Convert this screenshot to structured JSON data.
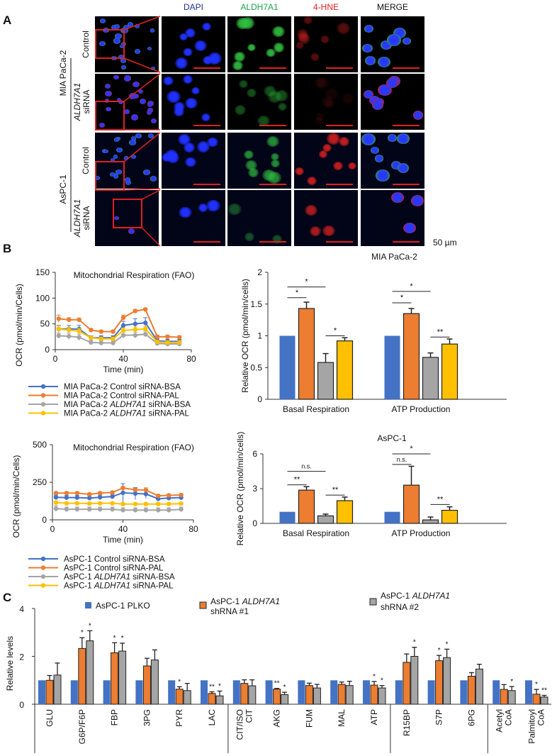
{
  "panel_a": {
    "label": "A",
    "columns": [
      "DAPI",
      "ALDH7A1",
      "4-HNE",
      "MERGE"
    ],
    "column_colors": [
      "#1f2f8a",
      "#1aa34a",
      "#e02020",
      "#111111"
    ],
    "cell_lines": [
      "MIA PaCa-2",
      "AsPC-1"
    ],
    "rows": [
      {
        "line1": "Control",
        "line2": ""
      },
      {
        "line1": "ALDH7A1",
        "line2": "siRNA"
      },
      {
        "line1": "Control",
        "line2": ""
      },
      {
        "line1": "ALDH7A1",
        "line2": "siRNA"
      }
    ],
    "scale_bar": "50 µm"
  },
  "panel_b": {
    "label": "B"
  },
  "panel_c": {
    "label": "C"
  },
  "chart_data": [
    {
      "id": "mia-ocr-time",
      "type": "line",
      "title": "Mitochondrial Respiration (FAO)",
      "xlabel": "Time (min)",
      "ylabel": "OCR (pmol/min/Cells)",
      "xlim": [
        0,
        80
      ],
      "xticks": [
        0,
        40,
        80
      ],
      "ylim": [
        0,
        150
      ],
      "yticks": [
        0,
        50,
        100,
        150
      ],
      "x": [
        2,
        8,
        14,
        21,
        27,
        34,
        40,
        47,
        53,
        60,
        66,
        73
      ],
      "series": [
        {
          "name": "MIA PaCa-2 Control siRNA-BSA",
          "color": "#4472C4",
          "values": [
            40,
            40,
            40,
            23,
            23,
            23,
            47,
            50,
            52,
            17,
            16,
            16
          ],
          "error": [
            7,
            7,
            7,
            4,
            4,
            4,
            8,
            10,
            10,
            4,
            4,
            4
          ]
        },
        {
          "name": "MIA PaCa-2 Control siRNA-PAL",
          "color": "#ED7D31",
          "values": [
            60,
            58,
            58,
            38,
            35,
            35,
            62,
            75,
            78,
            25,
            25,
            24
          ],
          "error": [
            7,
            4,
            3,
            3,
            2,
            3,
            5,
            3,
            3,
            3,
            3,
            3
          ]
        },
        {
          "name": "MIA PaCa-2 ALDH7A1 siRNA-BSA",
          "color": "#A5A5A5",
          "values": [
            27,
            26,
            24,
            14,
            13,
            13,
            28,
            28,
            30,
            12,
            11,
            11
          ],
          "error": [
            5,
            6,
            6,
            4,
            4,
            4,
            6,
            6,
            6,
            3,
            3,
            3
          ]
        },
        {
          "name": "MIA PaCa-2 ALDH7A1 siRNA-PAL",
          "color": "#FFC000",
          "values": [
            40,
            38,
            36,
            23,
            21,
            21,
            37,
            39,
            40,
            15,
            14,
            14
          ],
          "error": [
            6,
            5,
            5,
            3,
            3,
            3,
            5,
            5,
            5,
            3,
            3,
            3
          ]
        }
      ],
      "italic_term": "ALDH7A1"
    },
    {
      "id": "aspc-ocr-time",
      "type": "line",
      "title": "Mitochondrial Respiration (FAO)",
      "xlabel": "Time (min)",
      "ylabel": "OCR (pmol/min/Cells)",
      "xlim": [
        0,
        80
      ],
      "xticks": [
        0,
        40,
        80
      ],
      "ylim": [
        0,
        500
      ],
      "yticks": [
        0,
        250,
        500
      ],
      "x": [
        2,
        8,
        14,
        21,
        27,
        34,
        40,
        47,
        53,
        60,
        66,
        73
      ],
      "series": [
        {
          "name": "AsPC-1 Control siRNA-BSA",
          "color": "#4472C4",
          "values": [
            150,
            148,
            148,
            145,
            150,
            155,
            180,
            175,
            172,
            140,
            145,
            148
          ],
          "error": [
            15,
            15,
            15,
            15,
            15,
            15,
            60,
            40,
            30,
            15,
            15,
            15
          ]
        },
        {
          "name": "AsPC-1 Control siRNA-PAL",
          "color": "#ED7D31",
          "values": [
            178,
            178,
            178,
            170,
            178,
            182,
            212,
            200,
            198,
            160,
            163,
            165
          ],
          "error": [
            8,
            8,
            8,
            8,
            8,
            8,
            10,
            10,
            15,
            8,
            8,
            8
          ]
        },
        {
          "name": "AsPC-1 ALDH7A1 siRNA-BSA",
          "color": "#A5A5A5",
          "values": [
            75,
            70,
            70,
            70,
            70,
            70,
            65,
            65,
            65,
            65,
            65,
            70
          ],
          "error": [
            20,
            15,
            15,
            15,
            15,
            15,
            15,
            15,
            15,
            15,
            15,
            15
          ]
        },
        {
          "name": "AsPC-1 ALDH7A1 siRNA-PAL",
          "color": "#FFC000",
          "values": [
            115,
            110,
            110,
            108,
            110,
            110,
            105,
            105,
            105,
            105,
            105,
            108
          ],
          "error": [
            10,
            8,
            8,
            8,
            8,
            8,
            8,
            8,
            8,
            8,
            8,
            8
          ]
        }
      ],
      "italic_term": "ALDH7A1"
    },
    {
      "id": "mia-relative-ocr",
      "type": "bar",
      "title": "MIA PaCa-2",
      "ylabel": "Relative OCR (pmol/min/cells)",
      "ylim": [
        0,
        2
      ],
      "yticks": [
        0,
        0.5,
        1,
        1.5,
        2
      ],
      "categories": [
        "Basal Respiration",
        "ATP Production"
      ],
      "colors": [
        "#4472C4",
        "#ED7D31",
        "#A5A5A5",
        "#FFC000"
      ],
      "series": [
        {
          "values": [
            1,
            1
          ],
          "error": [
            0,
            0
          ]
        },
        {
          "values": [
            1.43,
            1.35
          ],
          "error": [
            0.1,
            0.08
          ]
        },
        {
          "values": [
            0.58,
            0.66
          ],
          "error": [
            0.14,
            0.07
          ]
        },
        {
          "values": [
            0.92,
            0.87
          ],
          "error": [
            0.05,
            0.08
          ]
        }
      ],
      "significance": [
        {
          "group": 0,
          "from": 0,
          "to": 1,
          "y": 1.6,
          "label": "*"
        },
        {
          "group": 0,
          "from": 0,
          "to": 2,
          "y": 1.77,
          "label": "*"
        },
        {
          "group": 0,
          "from": 2,
          "to": 3,
          "y": 1.0,
          "label": "*"
        },
        {
          "group": 1,
          "from": 0,
          "to": 1,
          "y": 1.52,
          "label": "*"
        },
        {
          "group": 1,
          "from": 0,
          "to": 2,
          "y": 1.7,
          "label": "*"
        },
        {
          "group": 1,
          "from": 2,
          "to": 3,
          "y": 0.98,
          "label": "**"
        }
      ]
    },
    {
      "id": "aspc-relative-ocr",
      "type": "bar",
      "title": "AsPC-1",
      "ylabel": "Relative OCR (pmol/min/cells)",
      "ylim": [
        0,
        6
      ],
      "yticks": [
        0,
        3,
        6
      ],
      "categories": [
        "Basal Respiration",
        "ATP Production"
      ],
      "colors": [
        "#4472C4",
        "#ED7D31",
        "#A5A5A5",
        "#FFC000"
      ],
      "series": [
        {
          "values": [
            1,
            1
          ],
          "error": [
            0,
            0
          ]
        },
        {
          "values": [
            2.87,
            3.3
          ],
          "error": [
            0.3,
            1.63
          ]
        },
        {
          "values": [
            0.65,
            0.3
          ],
          "error": [
            0.15,
            0.25
          ]
        },
        {
          "values": [
            1.96,
            1.13
          ],
          "error": [
            0.31,
            0.3
          ]
        }
      ],
      "significance": [
        {
          "group": 0,
          "from": 0,
          "to": 1,
          "y": 3.33,
          "label": "**"
        },
        {
          "group": 0,
          "from": 0,
          "to": 2,
          "y": 4.49,
          "label": "n.s."
        },
        {
          "group": 0,
          "from": 2,
          "to": 3,
          "y": 2.44,
          "label": "**"
        },
        {
          "group": 1,
          "from": 0,
          "to": 1,
          "y": 5.09,
          "label": "n.s."
        },
        {
          "group": 1,
          "from": 0,
          "to": 2,
          "y": 6.0,
          "label": "*"
        },
        {
          "group": 1,
          "from": 2,
          "to": 3,
          "y": 1.63,
          "label": "**"
        }
      ]
    },
    {
      "id": "metabolite-levels",
      "type": "bar",
      "ylabel": "Relative levels",
      "ylim": [
        0,
        4
      ],
      "yticks": [
        0,
        2,
        4
      ],
      "categories": [
        "GLU",
        "G6P/F6P",
        "FBP",
        "3PG",
        "PYR",
        "LAC",
        "CIT/ISO CIT",
        "AKG",
        "FUM",
        "MAL",
        "ATP",
        "R15BP",
        "S7P",
        "6PG",
        "Acetyl CoA",
        "Palmitoyl CoA"
      ],
      "category_lines": [
        [
          "GLU"
        ],
        [
          "G6P/F6P"
        ],
        [
          "FBP"
        ],
        [
          "3PG"
        ],
        [
          "PYR"
        ],
        [
          "LAC"
        ],
        [
          "CIT/ISO",
          "CIT"
        ],
        [
          "AKG"
        ],
        [
          "FUM"
        ],
        [
          "MAL"
        ],
        [
          "ATP"
        ],
        [
          "R15BP"
        ],
        [
          "S7P"
        ],
        [
          "6PG"
        ],
        [
          "Acetyl",
          "CoA"
        ],
        [
          "Palmitoyl",
          "CoA"
        ]
      ],
      "group_breaks_after": [
        "LAC",
        "ATP",
        "6PG"
      ],
      "colors": [
        "#4472C4",
        "#ED7D31",
        "#A5A5A5"
      ],
      "legend": [
        {
          "line1": "AsPC-1 PLKO",
          "line2": ""
        },
        {
          "line1": "AsPC-1 ALDH7A1",
          "line2": "shRNA #1"
        },
        {
          "line1": "AsPC-1 ALDH7A1",
          "line2": "shRNA #2"
        }
      ],
      "series": [
        {
          "name": "AsPC-1 PLKO",
          "values": [
            1,
            1,
            1,
            1,
            1,
            1,
            1,
            1,
            1,
            1,
            1,
            1,
            1,
            1,
            1,
            1
          ],
          "error": [
            0,
            0,
            0,
            0,
            0,
            0,
            0,
            0,
            0,
            0,
            0,
            0,
            0,
            0,
            0,
            0
          ],
          "stars": [
            "",
            "",
            "",
            "",
            "",
            "",
            "",
            "",
            "",
            "",
            "",
            "",
            "",
            "",
            "",
            ""
          ]
        },
        {
          "name": "AsPC-1 ALDH7A1 shRNA #1",
          "values": [
            1.0,
            2.33,
            2.15,
            1.6,
            0.63,
            0.45,
            0.87,
            0.63,
            0.78,
            0.83,
            0.8,
            1.75,
            1.82,
            1.17,
            0.62,
            0.42
          ],
          "error": [
            0.2,
            0.45,
            0.42,
            0.32,
            0.1,
            0.07,
            0.15,
            0.03,
            0.1,
            0.1,
            0.15,
            0.35,
            0.22,
            0.15,
            0.2,
            0.2
          ],
          "stars": [
            "",
            "*",
            "*",
            "",
            "*",
            "**",
            "",
            "**",
            "",
            "",
            "*",
            "",
            "*",
            "",
            "",
            "*"
          ]
        },
        {
          "name": "AsPC-1 ALDH7A1 shRNA #2",
          "values": [
            1.22,
            2.65,
            2.22,
            1.85,
            0.57,
            0.35,
            0.77,
            0.4,
            0.68,
            0.78,
            0.68,
            2.0,
            1.95,
            1.47,
            0.57,
            0.3
          ],
          "error": [
            0.5,
            0.42,
            0.33,
            0.42,
            0.3,
            0.2,
            0.25,
            0.1,
            0.15,
            0.18,
            0.1,
            0.38,
            0.35,
            0.2,
            0.17,
            0.07
          ],
          "stars": [
            "",
            "*",
            "*",
            "",
            "",
            "*",
            "",
            "*",
            "",
            "",
            "*",
            "*",
            "*",
            "",
            "*",
            "**"
          ]
        }
      ]
    }
  ]
}
